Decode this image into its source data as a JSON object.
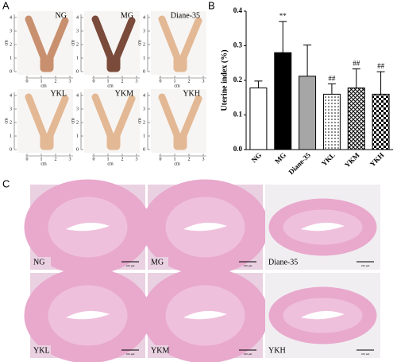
{
  "panel_labels": [
    "A",
    "B",
    "C"
  ],
  "photos": {
    "labels": [
      "NG",
      "MG",
      "Diane-35",
      "YKL",
      "YKM",
      "YKH"
    ],
    "unit": "cm",
    "vertical_ticks": [
      0,
      1,
      2,
      3,
      4
    ],
    "horizontal_ticks": [
      0,
      1,
      2,
      3
    ]
  },
  "histology": {
    "labels": [
      "NG",
      "MG",
      "Diane-35",
      "YKL",
      "YKM",
      "YKH"
    ],
    "scale_bar": "100 μm"
  },
  "chart_data": {
    "type": "bar",
    "ylabel": "Uterine index (%)",
    "categories": [
      "NG",
      "MG",
      "Diane-35",
      "YKL",
      "YKM",
      "YKH"
    ],
    "values": [
      0.178,
      0.28,
      0.212,
      0.16,
      0.178,
      0.16
    ],
    "errors": [
      0.02,
      0.09,
      0.09,
      0.03,
      0.055,
      0.065
    ],
    "fills": [
      "white",
      "black",
      "#a6a6a6",
      "dots",
      "crosshatch",
      "checker"
    ],
    "annotations": [
      {
        "category": "MG",
        "text": "**"
      },
      {
        "category": "YKL",
        "text": "##"
      },
      {
        "category": "YKM",
        "text": "##"
      },
      {
        "category": "YKH",
        "text": "##"
      }
    ],
    "ylim": [
      0,
      0.4
    ],
    "yticks": [
      {
        "value": 0,
        "label": "0.0"
      },
      0.1,
      0.2,
      0.3,
      0.4
    ]
  }
}
